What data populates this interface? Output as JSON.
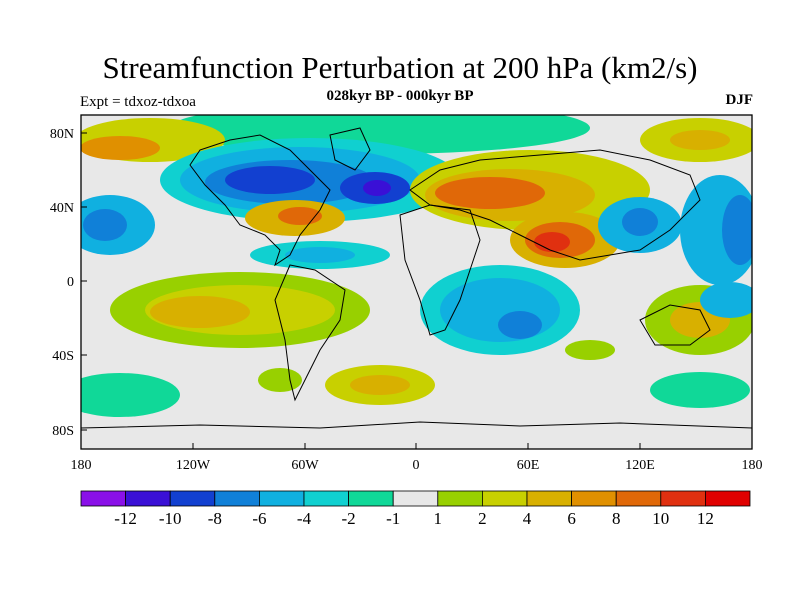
{
  "title": "Streamfunction Perturbation at 200 hPa (km2/s)",
  "subtitle": "028kyr BP - 000kyr BP",
  "left_label": "Expt = tdxoz-tdxoa",
  "right_label": "DJF",
  "lat_ticks": [
    "80N",
    "40N",
    "0",
    "40S",
    "80S"
  ],
  "lon_ticks": [
    "180",
    "120W",
    "60W",
    "0",
    "60E",
    "120E",
    "180"
  ],
  "colorbar": {
    "colors": [
      "#8a10e8",
      "#3a10d6",
      "#1240d0",
      "#1080d8",
      "#10b0e0",
      "#10d0d0",
      "#10d898",
      "#e8e8e8",
      "#98d000",
      "#c8d000",
      "#d8b000",
      "#e09000",
      "#e06808",
      "#e03010",
      "#e00000"
    ],
    "labels": [
      "-12",
      "-10",
      "-8",
      "-6",
      "-4",
      "-2",
      "-1",
      "1",
      "2",
      "4",
      "6",
      "8",
      "10",
      "12"
    ]
  }
}
